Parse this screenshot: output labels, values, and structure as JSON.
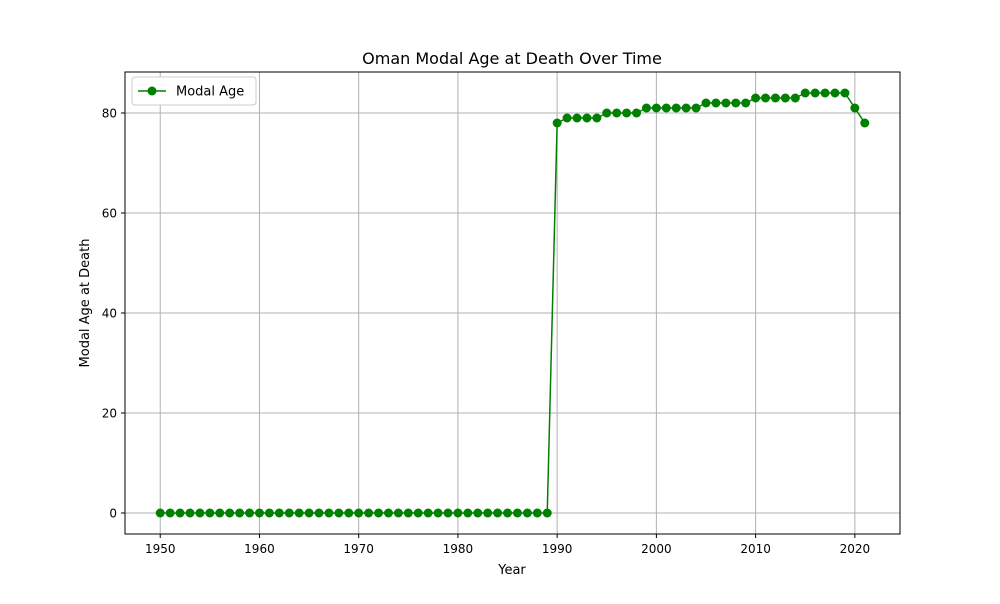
{
  "chart_data": {
    "type": "line",
    "title": "Oman Modal Age at Death Over Time",
    "xlabel": "Year",
    "ylabel": "Modal Age at Death",
    "xlim": [
      1946.45,
      2024.55
    ],
    "ylim": [
      -4.2,
      88.2
    ],
    "xticks": [
      1950,
      1960,
      1970,
      1980,
      1990,
      2000,
      2010,
      2020
    ],
    "yticks": [
      0,
      20,
      40,
      60,
      80
    ],
    "grid": true,
    "legend_position": "top-left",
    "series": [
      {
        "name": "Modal Age",
        "color": "#008000",
        "marker": "circle",
        "x": [
          1950,
          1951,
          1952,
          1953,
          1954,
          1955,
          1956,
          1957,
          1958,
          1959,
          1960,
          1961,
          1962,
          1963,
          1964,
          1965,
          1966,
          1967,
          1968,
          1969,
          1970,
          1971,
          1972,
          1973,
          1974,
          1975,
          1976,
          1977,
          1978,
          1979,
          1980,
          1981,
          1982,
          1983,
          1984,
          1985,
          1986,
          1987,
          1988,
          1989,
          1990,
          1991,
          1992,
          1993,
          1994,
          1995,
          1996,
          1997,
          1998,
          1999,
          2000,
          2001,
          2002,
          2003,
          2004,
          2005,
          2006,
          2007,
          2008,
          2009,
          2010,
          2011,
          2012,
          2013,
          2014,
          2015,
          2016,
          2017,
          2018,
          2019,
          2020,
          2021
        ],
        "values": [
          0,
          0,
          0,
          0,
          0,
          0,
          0,
          0,
          0,
          0,
          0,
          0,
          0,
          0,
          0,
          0,
          0,
          0,
          0,
          0,
          0,
          0,
          0,
          0,
          0,
          0,
          0,
          0,
          0,
          0,
          0,
          0,
          0,
          0,
          0,
          0,
          0,
          0,
          0,
          0,
          78,
          79,
          79,
          79,
          79,
          80,
          80,
          80,
          80,
          81,
          81,
          81,
          81,
          81,
          81,
          82,
          82,
          82,
          82,
          82,
          83,
          83,
          83,
          83,
          83,
          84,
          84,
          84,
          84,
          84,
          81,
          78
        ]
      }
    ]
  }
}
